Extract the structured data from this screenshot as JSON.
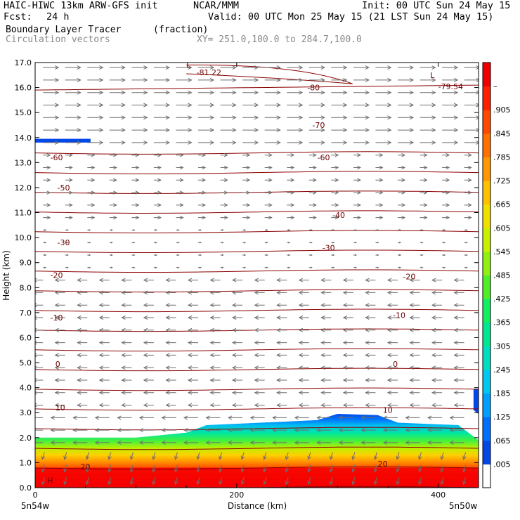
{
  "header": {
    "model": "HAIC-HIWC 13km ARW-GFS init",
    "org": "NCAR/MMM",
    "init": "Init: 00 UTC Sun 24 May 15",
    "fcst_label": "Fcst:",
    "fcst_value": "24 h",
    "valid": "Valid: 00 UTC Mon 25 May 15 (21 LST Sun 24 May 15)",
    "field_name": "Boundary Layer Tracer",
    "field_units": "(fraction)",
    "overlay_name": "Circulation vectors",
    "xy_range": "XY= 251.0,100.0 to 284.7,100.0"
  },
  "chart_data": {
    "type": "heatmap",
    "ylabel": "Height (km)",
    "xlabel": "Distance (km)",
    "xlim": [
      0,
      440
    ],
    "ylim": [
      0,
      17
    ],
    "x_ticks": [
      "0",
      "200",
      "400"
    ],
    "y_ticks": [
      "0.0",
      "1.0",
      "2.0",
      "3.0",
      "4.0",
      "5.0",
      "6.0",
      "7.0",
      "8.0",
      "9.0",
      "10.0",
      "11.0",
      "12.0",
      "13.0",
      "14.0",
      "15.0",
      "16.0",
      "17.0"
    ],
    "x_corner_labels": {
      "left": "5n54w",
      "right": "5n50w"
    },
    "colorbar": {
      "labels": [
        ".005",
        ".065",
        ".125",
        ".185",
        ".245",
        ".305",
        ".365",
        ".425",
        ".485",
        ".545",
        ".605",
        ".665",
        ".725",
        ".785",
        ".845",
        ".905",
        "–"
      ],
      "colors": [
        "#ffffff",
        "#0048e8",
        "#0070ff",
        "#00a0ff",
        "#00c8f0",
        "#00e0c0",
        "#00e890",
        "#10f060",
        "#50f028",
        "#90f010",
        "#c8f000",
        "#f0e000",
        "#ffc000",
        "#ff9800",
        "#ff7000",
        "#ff4800",
        "#ff2000",
        "#f00000"
      ]
    },
    "tracer_top_km": [
      {
        "x": 0,
        "top": 2.0
      },
      {
        "x": 100,
        "top": 2.0
      },
      {
        "x": 150,
        "top": 2.2
      },
      {
        "x": 170,
        "top": 2.5
      },
      {
        "x": 280,
        "top": 2.7
      },
      {
        "x": 300,
        "top": 2.95
      },
      {
        "x": 340,
        "top": 2.9
      },
      {
        "x": 360,
        "top": 2.6
      },
      {
        "x": 420,
        "top": 2.5
      },
      {
        "x": 440,
        "top": 1.9
      }
    ],
    "temperature_contours": [
      {
        "label": "-80",
        "value": -80
      },
      {
        "label": "-81.22",
        "value": -81.22
      },
      {
        "label": "-79.54",
        "value": -79.54
      },
      {
        "label": "-70",
        "value": -70
      },
      {
        "label": "-60",
        "value": -60
      },
      {
        "label": "-50",
        "value": -50
      },
      {
        "label": "-40",
        "value": -40
      },
      {
        "label": "-30",
        "value": -30
      },
      {
        "label": "-20",
        "value": -20
      },
      {
        "label": "-10",
        "value": -10
      },
      {
        "label": "0",
        "value": 0
      },
      {
        "label": "10",
        "value": 10
      },
      {
        "label": "20",
        "value": 20
      }
    ],
    "extrema_labels": [
      "L",
      "L",
      "H"
    ]
  }
}
